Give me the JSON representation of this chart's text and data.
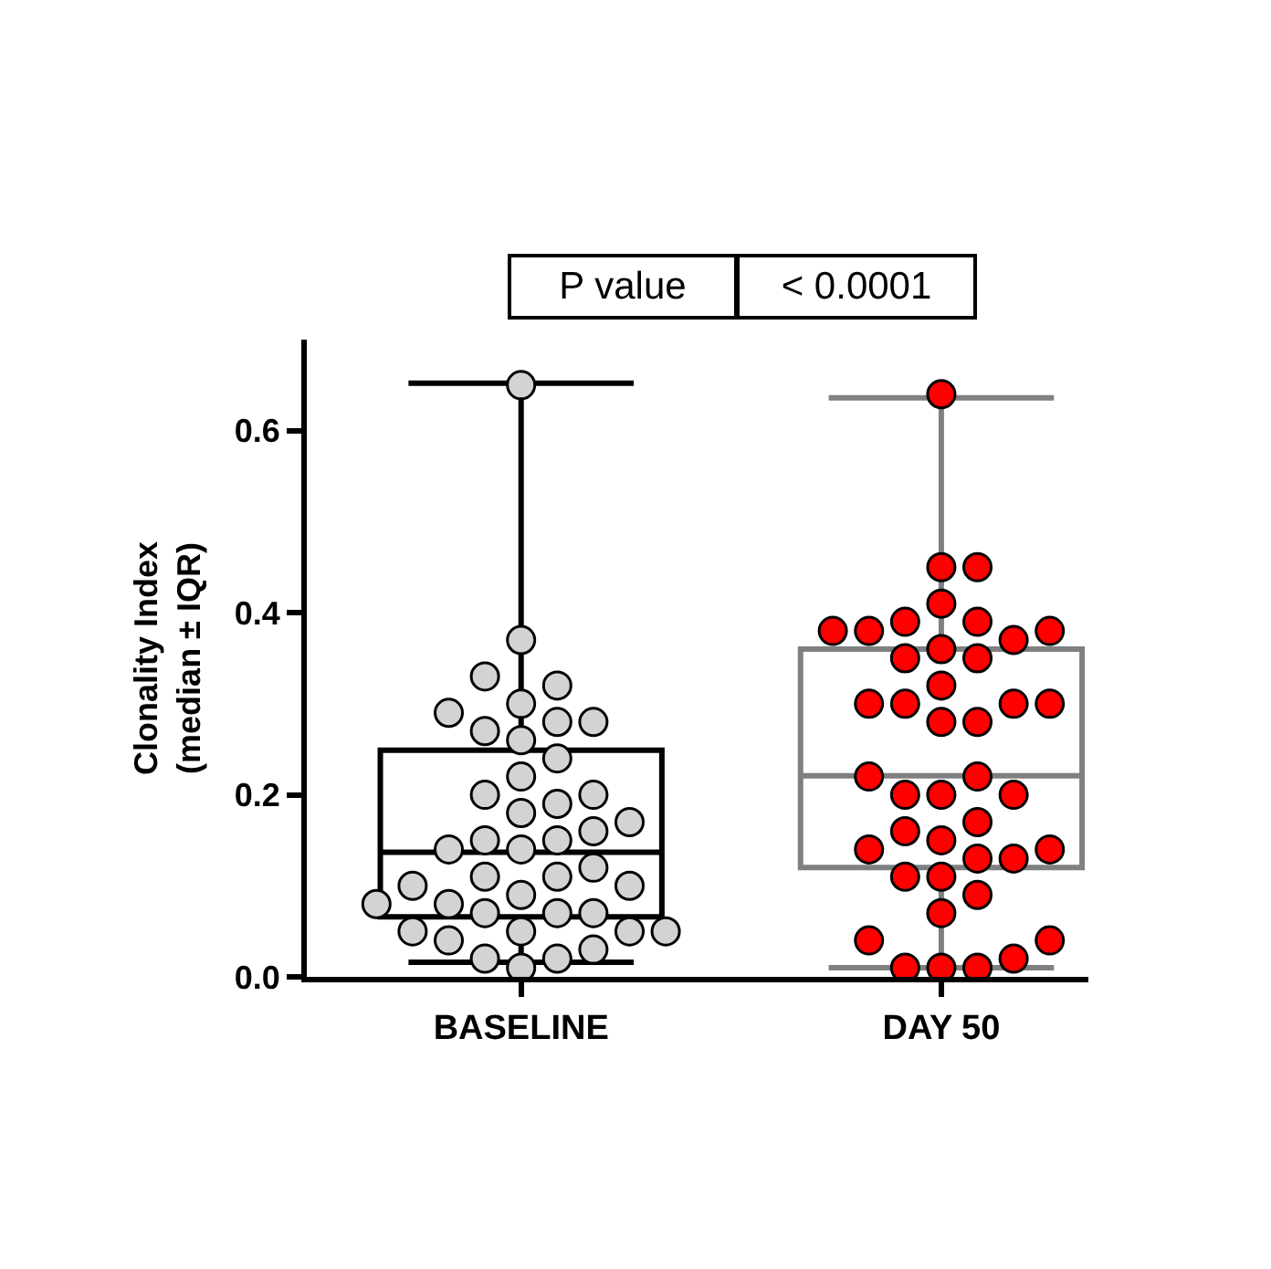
{
  "chart_data": {
    "type": "box",
    "categories": [
      "BASELINE",
      "DAY 50"
    ],
    "ylabel": "Clonality Index\n(median ± IQR)",
    "ylim": [
      0,
      0.7
    ],
    "yticks": [
      {
        "value": 0,
        "label": "0.0"
      },
      0.2,
      0.4,
      0.6
    ],
    "annotations": [
      "P value",
      "< 0.0001"
    ],
    "boxes": [
      {
        "low": 0.016,
        "q1": 0.066,
        "median": 0.137,
        "q3": 0.249,
        "high": 0.652
      },
      {
        "low": 0.01,
        "q1": 0.12,
        "median": 0.221,
        "q3": 0.36,
        "high": 0.636
      }
    ],
    "colors": [
      "#000000",
      "#808080"
    ],
    "series": [
      {
        "type": "scatter",
        "marker": "circle",
        "color": "#d3d3d3",
        "x": [
          "BASELINE",
          "BASELINE",
          "BASELINE",
          "BASELINE",
          "BASELINE",
          "BASELINE",
          "BASELINE",
          "BASELINE",
          "BASELINE",
          "BASELINE",
          "BASELINE",
          "BASELINE",
          "BASELINE",
          "BASELINE",
          "BASELINE",
          "BASELINE",
          "BASELINE",
          "BASELINE",
          "BASELINE",
          "BASELINE",
          "BASELINE",
          "BASELINE",
          "BASELINE",
          "BASELINE",
          "BASELINE",
          "BASELINE",
          "BASELINE",
          "BASELINE",
          "BASELINE",
          "BASELINE",
          "BASELINE",
          "BASELINE",
          "BASELINE",
          "BASELINE",
          "BASELINE",
          "BASELINE",
          "BASELINE",
          "BASELINE",
          "BASELINE",
          "BASELINE",
          "BASELINE",
          "BASELINE"
        ],
        "values": [
          0.65,
          0.37,
          0.32,
          0.33,
          0.28,
          0.29,
          0.3,
          0.28,
          0.27,
          0.26,
          0.24,
          0.22,
          0.2,
          0.2,
          0.19,
          0.18,
          0.17,
          0.16,
          0.15,
          0.15,
          0.14,
          0.14,
          0.12,
          0.11,
          0.1,
          0.11,
          0.1,
          0.09,
          0.08,
          0.07,
          0.07,
          0.07,
          0.08,
          0.05,
          0.05,
          0.04,
          0.05,
          0.05,
          0.03,
          0.02,
          0.01,
          0.02
        ]
      },
      {
        "type": "scatter",
        "marker": "circle",
        "color": "#ff0000",
        "x": [
          "DAY 50",
          "DAY 50",
          "DAY 50",
          "DAY 50",
          "DAY 50",
          "DAY 50",
          "DAY 50",
          "DAY 50",
          "DAY 50",
          "DAY 50",
          "DAY 50",
          "DAY 50",
          "DAY 50",
          "DAY 50",
          "DAY 50",
          "DAY 50",
          "DAY 50",
          "DAY 50",
          "DAY 50",
          "DAY 50",
          "DAY 50",
          "DAY 50",
          "DAY 50",
          "DAY 50",
          "DAY 50",
          "DAY 50",
          "DAY 50",
          "DAY 50",
          "DAY 50",
          "DAY 50",
          "DAY 50",
          "DAY 50",
          "DAY 50",
          "DAY 50",
          "DAY 50",
          "DAY 50",
          "DAY 50",
          "DAY 50",
          "DAY 50",
          "DAY 50",
          "DAY 50",
          "DAY 50"
        ],
        "values": [
          0.64,
          0.45,
          0.45,
          0.41,
          0.39,
          0.38,
          0.38,
          0.37,
          0.38,
          0.39,
          0.36,
          0.35,
          0.35,
          0.3,
          0.3,
          0.28,
          0.28,
          0.3,
          0.3,
          0.32,
          0.22,
          0.22,
          0.2,
          0.2,
          0.2,
          0.17,
          0.15,
          0.14,
          0.13,
          0.13,
          0.14,
          0.16,
          0.11,
          0.11,
          0.09,
          0.07,
          0.04,
          0.04,
          0.02,
          0.01,
          0.01,
          0.01
        ]
      }
    ]
  }
}
